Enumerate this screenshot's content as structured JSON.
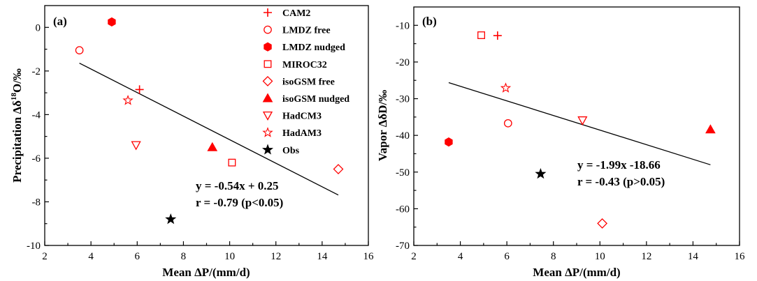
{
  "colors": {
    "model": "#ff0000",
    "obs": "#000000",
    "fit": "#000000"
  },
  "legend": [
    {
      "name": "CAM2",
      "marker": "plus"
    },
    {
      "name": "LMDZ free",
      "marker": "circle-open"
    },
    {
      "name": "LMDZ nudged",
      "marker": "hexagon-filled"
    },
    {
      "name": "MIROC32",
      "marker": "square-open"
    },
    {
      "name": "isoGSM free",
      "marker": "diamond-open"
    },
    {
      "name": "isoGSM nudged",
      "marker": "triangle-filled"
    },
    {
      "name": "HadCM3",
      "marker": "triangle-down-open"
    },
    {
      "name": "HadAM3",
      "marker": "star-open"
    },
    {
      "name": "Obs",
      "marker": "star-filled"
    }
  ],
  "chart_data": [
    {
      "type": "scatter",
      "panel_label": "(a)",
      "xlabel": "Mean ΔP/(mm/d)",
      "ylabel_parts": {
        "prefix": "Precipitation Δδ",
        "sup": "18",
        "suffix": "O/‰"
      },
      "xlim": [
        2,
        16
      ],
      "ylim": [
        -10,
        1
      ],
      "xticks": [
        2,
        4,
        6,
        8,
        10,
        12,
        14,
        16
      ],
      "yticks": [
        0,
        -2,
        -4,
        -6,
        -8,
        -10
      ],
      "points": [
        {
          "series": "CAM2",
          "x": 6.1,
          "y": -2.85
        },
        {
          "series": "LMDZ free",
          "x": 3.5,
          "y": -1.05
        },
        {
          "series": "LMDZ nudged",
          "x": 4.9,
          "y": 0.25
        },
        {
          "series": "MIROC32",
          "x": 10.1,
          "y": -6.2
        },
        {
          "series": "isoGSM free",
          "x": 14.7,
          "y": -6.5
        },
        {
          "series": "isoGSM nudged",
          "x": 9.25,
          "y": -5.5
        },
        {
          "series": "HadCM3",
          "x": 5.95,
          "y": -5.4
        },
        {
          "series": "HadAM3",
          "x": 5.6,
          "y": -3.35
        },
        {
          "series": "Obs",
          "x": 7.45,
          "y": -8.8
        }
      ],
      "fit_line": {
        "slope": -0.54,
        "intercept": 0.25,
        "x_range": [
          3.5,
          14.7
        ]
      },
      "annotations": [
        "y = -0.54x + 0.25",
        "r = -0.79 (p<0.05)"
      ]
    },
    {
      "type": "scatter",
      "panel_label": "(b)",
      "xlabel": "Mean ΔP/(mm/d)",
      "ylabel_parts": {
        "prefix": "Vapor ΔδD/‰",
        "sup": "",
        "suffix": ""
      },
      "xlim": [
        2,
        16
      ],
      "ylim": [
        -70,
        -5
      ],
      "xticks": [
        2,
        4,
        6,
        8,
        10,
        12,
        14,
        16
      ],
      "yticks": [
        -10,
        -20,
        -30,
        -40,
        -50,
        -60,
        -70
      ],
      "points": [
        {
          "series": "CAM2",
          "x": 5.6,
          "y": -12.8
        },
        {
          "series": "LMDZ free",
          "x": 6.05,
          "y": -36.7
        },
        {
          "series": "LMDZ nudged",
          "x": 3.5,
          "y": -41.8
        },
        {
          "series": "MIROC32",
          "x": 4.9,
          "y": -12.7
        },
        {
          "series": "isoGSM free",
          "x": 10.1,
          "y": -64.0
        },
        {
          "series": "isoGSM nudged",
          "x": 14.75,
          "y": -38.4
        },
        {
          "series": "HadCM3",
          "x": 9.25,
          "y": -35.9
        },
        {
          "series": "HadAM3",
          "x": 5.95,
          "y": -27.1
        },
        {
          "series": "Obs",
          "x": 7.45,
          "y": -50.5
        }
      ],
      "fit_line": {
        "slope": -1.99,
        "intercept": -18.66,
        "x_range": [
          3.5,
          14.75
        ]
      },
      "annotations": [
        "y = -1.99x -18.66",
        "r = -0.43 (p>0.05)"
      ]
    }
  ]
}
